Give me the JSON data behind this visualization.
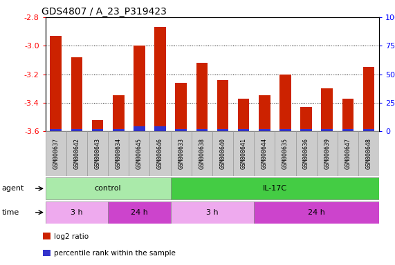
{
  "title": "GDS4807 / A_23_P319423",
  "samples": [
    "GSM808637",
    "GSM808642",
    "GSM808643",
    "GSM808634",
    "GSM808645",
    "GSM808646",
    "GSM808633",
    "GSM808638",
    "GSM808640",
    "GSM808641",
    "GSM808644",
    "GSM808635",
    "GSM808636",
    "GSM808639",
    "GSM808647",
    "GSM808648"
  ],
  "log2_values": [
    -2.93,
    -3.08,
    -3.52,
    -3.35,
    -3.0,
    -2.87,
    -3.26,
    -3.12,
    -3.24,
    -3.37,
    -3.35,
    -3.2,
    -3.43,
    -3.3,
    -3.37,
    -3.15
  ],
  "percentile_values": [
    2,
    2,
    2,
    2,
    4,
    4,
    2,
    2,
    2,
    2,
    2,
    2,
    2,
    2,
    2,
    2
  ],
  "ymin": -3.6,
  "ymax": -2.8,
  "yticks": [
    -3.6,
    -3.4,
    -3.2,
    -3.0,
    -2.8
  ],
  "ytick_labels": [
    "-3.6",
    "-3.4",
    "-3.2",
    "-3.0",
    "-2.8"
  ],
  "right_yticks": [
    0,
    25,
    50,
    75,
    100
  ],
  "right_ytick_labels": [
    "0",
    "25",
    "50",
    "75",
    "100%"
  ],
  "bar_color_red": "#cc2200",
  "bar_color_blue": "#3333cc",
  "agent_groups": [
    {
      "name": "control",
      "start": 0,
      "end": 6,
      "color": "#aaeaaa"
    },
    {
      "name": "IL-17C",
      "start": 6,
      "end": 16,
      "color": "#44cc44"
    }
  ],
  "time_groups": [
    {
      "name": "3 h",
      "start": 0,
      "end": 3,
      "color": "#eeaaee"
    },
    {
      "name": "24 h",
      "start": 3,
      "end": 6,
      "color": "#cc44cc"
    },
    {
      "name": "3 h",
      "start": 6,
      "end": 10,
      "color": "#eeaaee"
    },
    {
      "name": "24 h",
      "start": 10,
      "end": 16,
      "color": "#cc44cc"
    }
  ],
  "legend": [
    {
      "color": "#cc2200",
      "label": "log2 ratio"
    },
    {
      "color": "#3333cc",
      "label": "percentile rank within the sample"
    }
  ],
  "bg_color": "#ffffff",
  "sample_bg_color": "#cccccc",
  "title_fontsize": 10,
  "bar_width": 0.55
}
